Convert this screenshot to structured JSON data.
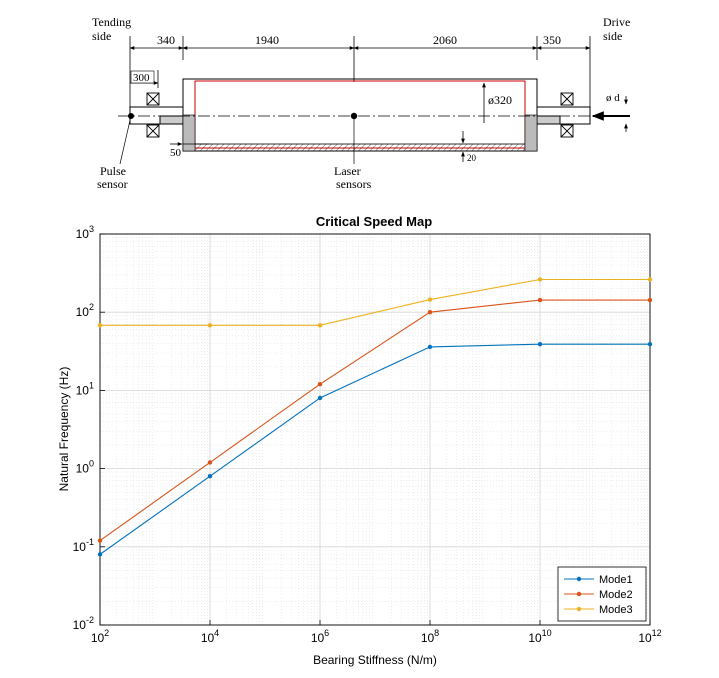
{
  "diagram": {
    "tending_side": [
      "Tending",
      "side"
    ],
    "drive_side": [
      "Drive",
      "side"
    ],
    "dims": {
      "d340": "340",
      "d1940": "1940",
      "d2060": "2060",
      "d350": "350",
      "d300": "300",
      "d50": "50",
      "d20": "20",
      "diameter": "ø320",
      "shaft_d": "ø d"
    },
    "pulse_sensor": [
      "Pulse",
      "sensor"
    ],
    "laser_sensors": [
      "Laser",
      "sensors"
    ]
  },
  "chart_data": {
    "type": "line",
    "title": "Critical Speed Map",
    "xlabel": "Bearing Stiffness (N/m)",
    "ylabel": "Natural Frequency (Hz)",
    "xscale": "log",
    "yscale": "log",
    "xlim": [
      100,
      1000000000000
    ],
    "ylim": [
      0.01,
      1000
    ],
    "grid": true,
    "minor_grid": true,
    "legend_position": "bottom-right",
    "x": [
      100,
      10000,
      1000000,
      100000000,
      10000000000,
      1000000000000
    ],
    "xtick_exponents": [
      "2",
      "4",
      "6",
      "8",
      "10",
      "12"
    ],
    "ytick_exponents": [
      "-2",
      "-1",
      "0",
      "1",
      "2",
      "3"
    ],
    "tick_base": "10",
    "series": [
      {
        "name": "Mode1",
        "color": "#0072BD",
        "values": [
          0.08,
          0.8,
          8,
          36,
          39,
          39
        ]
      },
      {
        "name": "Mode2",
        "color": "#D95319",
        "values": [
          0.12,
          1.2,
          12,
          100,
          143,
          143
        ]
      },
      {
        "name": "Mode3",
        "color": "#EDB120",
        "values": [
          68,
          68,
          68,
          145,
          262,
          262
        ]
      }
    ]
  }
}
